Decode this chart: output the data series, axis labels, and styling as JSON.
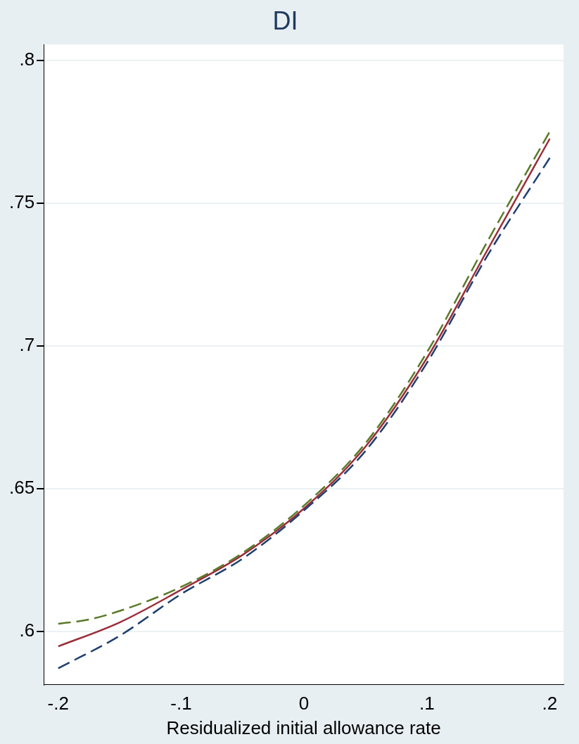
{
  "chart_data": {
    "type": "line",
    "title": "DI",
    "xlabel": "Residualized initial allowance rate",
    "xlim": [
      -0.2118,
      0.2112
    ],
    "ylim": [
      0.5814,
      0.8055
    ],
    "xticks": [
      {
        "value": -0.2,
        "label": "-.2"
      },
      {
        "value": -0.1,
        "label": "-.1"
      },
      0,
      {
        "value": 0.1,
        "label": ".1"
      },
      {
        "value": 0.2,
        "label": ".2"
      }
    ],
    "yticks": [
      {
        "value": 0.6,
        "label": ".6"
      },
      {
        "value": 0.65,
        "label": ".65"
      },
      {
        "value": 0.7,
        "label": ".7"
      },
      {
        "value": 0.75,
        "label": ".75"
      },
      {
        "value": 0.8,
        "label": ".8"
      }
    ],
    "grid": "y",
    "legend": false,
    "marker": "none",
    "series": [
      {
        "color": "#5a7a2a",
        "line_style": "dashed",
        "x": [
          -0.2,
          -0.175,
          -0.15,
          -0.1,
          -0.05,
          0,
          0.05,
          0.1,
          0.15,
          0.2
        ],
        "values": [
          0.6027,
          0.6042,
          0.6072,
          0.6156,
          0.6275,
          0.6441,
          0.6659,
          0.6977,
          0.7371,
          0.775
        ]
      },
      {
        "color": "#1f3f6f",
        "line_style": "dashed",
        "x": [
          -0.2,
          -0.15,
          -0.1,
          -0.05,
          0,
          0.05,
          0.1,
          0.15,
          0.2
        ],
        "values": [
          0.5871,
          0.5985,
          0.6131,
          0.6255,
          0.6424,
          0.6632,
          0.694,
          0.7321,
          0.7658
        ]
      },
      {
        "color": "#9b2d3a",
        "line_style": "solid",
        "x": [
          -0.2,
          -0.15,
          -0.1,
          -0.05,
          0,
          0.05,
          0.1,
          0.15,
          0.2
        ],
        "values": [
          0.5948,
          0.6032,
          0.6146,
          0.6268,
          0.6431,
          0.6647,
          0.6957,
          0.7341,
          0.7725
        ]
      }
    ]
  }
}
